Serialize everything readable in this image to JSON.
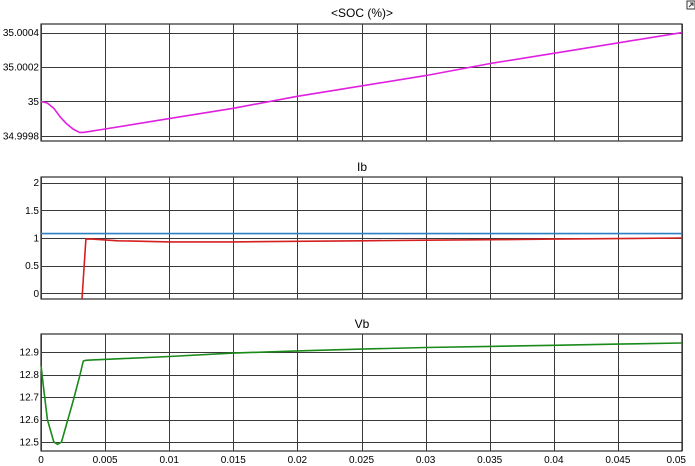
{
  "chart_data": [
    {
      "type": "line",
      "title": "<SOC (%)>",
      "xlim": [
        0,
        0.05
      ],
      "ylim": [
        34.99977,
        35.00045
      ],
      "yticks": [
        34.9998,
        35,
        35.0002,
        35.0004
      ],
      "ytick_labels": [
        "34.9998",
        "35",
        "35.0002",
        "35.0004"
      ],
      "grid": true,
      "series": [
        {
          "color": "#e020e0",
          "x": [
            0,
            0.0005,
            0.001,
            0.0015,
            0.002,
            0.0025,
            0.003,
            0.0033,
            0.005,
            0.01,
            0.015,
            0.02,
            0.025,
            0.03,
            0.035,
            0.04,
            0.045,
            0.05
          ],
          "y": [
            35.0,
            34.99999,
            34.99996,
            34.99991,
            34.99987,
            34.99984,
            34.99982,
            34.99982,
            34.99984,
            34.9999,
            34.99996,
            35.00003,
            35.00009,
            35.00015,
            35.00022,
            35.00028,
            35.00034,
            35.0004
          ]
        }
      ]
    },
    {
      "type": "line",
      "title": "Ib",
      "xlim": [
        0,
        0.05
      ],
      "ylim": [
        -0.1,
        2.1
      ],
      "yticks": [
        0,
        0.5,
        1,
        1.5,
        2
      ],
      "ytick_labels": [
        "0",
        "0.5",
        "1",
        "1.5",
        "2"
      ],
      "grid": true,
      "series": [
        {
          "color": "#2d7fc6",
          "x": [
            0,
            0.05
          ],
          "y": [
            1.08,
            1.08
          ]
        },
        {
          "color": "#d62020",
          "x": [
            0.0032,
            0.0035,
            0.004,
            0.006,
            0.008,
            0.01,
            0.015,
            0.02,
            0.025,
            0.03,
            0.035,
            0.04,
            0.045,
            0.05
          ],
          "y": [
            -0.12,
            0.98,
            0.98,
            0.95,
            0.94,
            0.93,
            0.93,
            0.94,
            0.95,
            0.96,
            0.97,
            0.98,
            0.99,
            1.0
          ]
        }
      ]
    },
    {
      "type": "line",
      "title": "Vb",
      "xlim": [
        0,
        0.05
      ],
      "ylim": [
        12.46,
        12.98
      ],
      "yticks": [
        12.5,
        12.6,
        12.7,
        12.8,
        12.9
      ],
      "ytick_labels": [
        "12.5",
        "12.6",
        "12.7",
        "12.8",
        "12.9"
      ],
      "xticks": [
        0,
        0.005,
        0.01,
        0.015,
        0.02,
        0.025,
        0.03,
        0.035,
        0.04,
        0.045,
        0.05
      ],
      "xtick_labels": [
        "0",
        "0.005",
        "0.01",
        "0.015",
        "0.02",
        "0.025",
        "0.03",
        "0.035",
        "0.04",
        "0.045",
        "0.05"
      ],
      "grid": true,
      "series": [
        {
          "color": "#1a8a1a",
          "x": [
            0,
            0.0002,
            0.0005,
            0.001,
            0.0013,
            0.0016,
            0.002,
            0.0025,
            0.003,
            0.0033,
            0.0035,
            0.004,
            0.006,
            0.01,
            0.015,
            0.02,
            0.025,
            0.03,
            0.035,
            0.04,
            0.045,
            0.05
          ],
          "y": [
            12.84,
            12.74,
            12.6,
            12.5,
            12.49,
            12.5,
            12.58,
            12.68,
            12.79,
            12.86,
            12.863,
            12.865,
            12.87,
            12.88,
            12.895,
            12.905,
            12.913,
            12.92,
            12.925,
            12.93,
            12.935,
            12.94
          ]
        }
      ]
    }
  ]
}
